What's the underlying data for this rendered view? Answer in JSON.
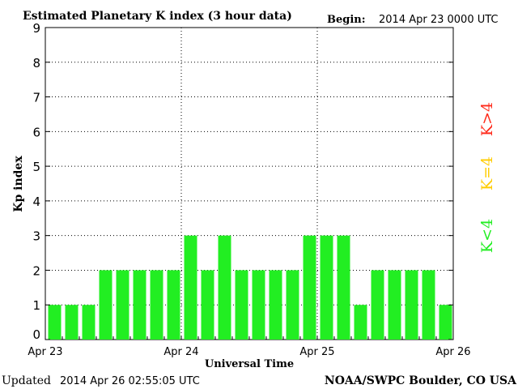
{
  "header": {
    "title": "Estimated Planetary K index (3 hour data)",
    "begin_label": "Begin:",
    "begin_value": "2014 Apr 23 0000 UTC"
  },
  "footer": {
    "updated_label": "Updated",
    "updated_value": "2014 Apr 26 02:55:05 UTC",
    "source": "NOAA/SWPC Boulder, CO USA"
  },
  "legend": {
    "high": {
      "label": "K>4",
      "color": "#ff2a1a"
    },
    "mid": {
      "label": "K=4",
      "color": "#ffcc00"
    },
    "low": {
      "label": "K<4",
      "color": "#22ee22"
    }
  },
  "chart_data": {
    "type": "bar",
    "title": "Estimated Planetary K index (3 hour data)",
    "xlabel": "Universal Time",
    "ylabel": "Kp index",
    "ylim": [
      0,
      9
    ],
    "y_ticks": [
      0,
      1,
      2,
      3,
      4,
      5,
      6,
      7,
      8,
      9
    ],
    "x_tick_labels": [
      "Apr 23",
      "Apr 24",
      "Apr 25",
      "Apr 26"
    ],
    "grid": true,
    "bar_color": "#22ee22",
    "series": [
      {
        "values": [
          1,
          1,
          1,
          2,
          2,
          2,
          2,
          2,
          3,
          2,
          3,
          2,
          2,
          2,
          2,
          3,
          3,
          3,
          1,
          2,
          2,
          2,
          2,
          1
        ]
      }
    ]
  }
}
